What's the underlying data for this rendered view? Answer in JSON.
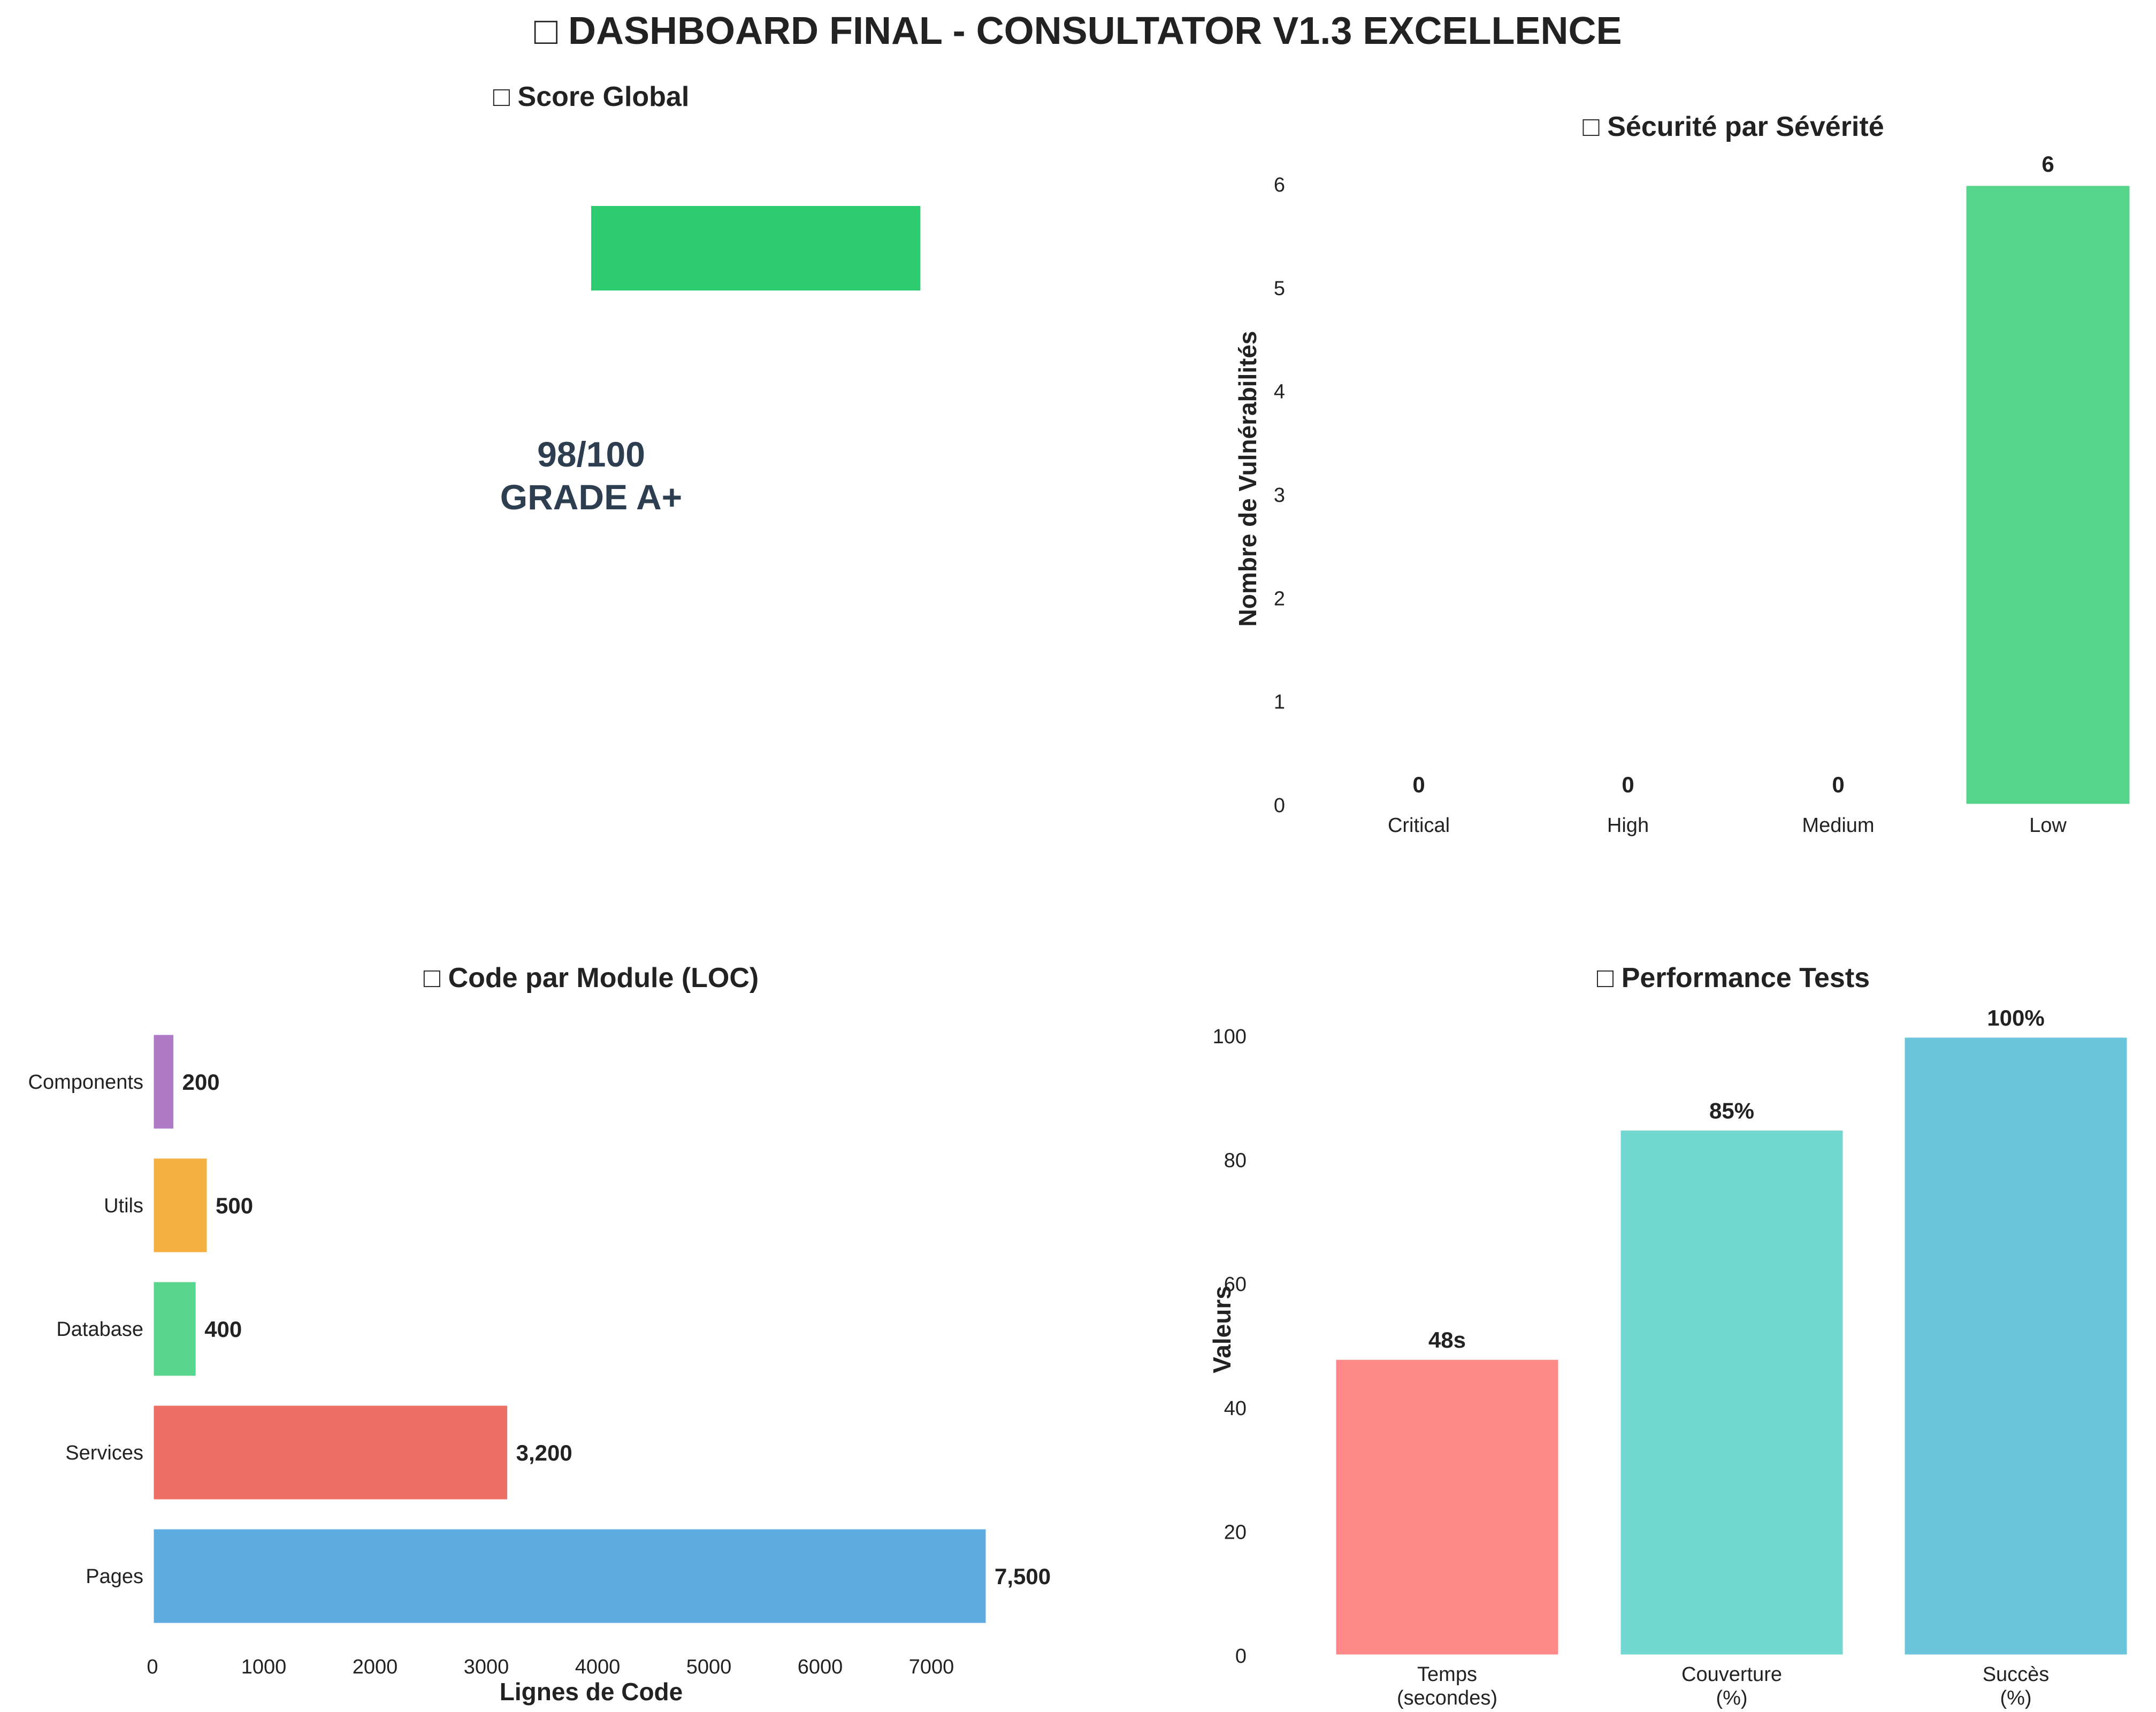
{
  "title": "□ DASHBOARD FINAL - CONSULTATOR V1.3 EXCELLENCE",
  "chart_data": [
    {
      "type": "bar",
      "title": "□ Score Global",
      "score_text": "98/100",
      "grade_text": "GRADE A+",
      "score": 98,
      "max": 100,
      "color": "#2ecc71"
    },
    {
      "type": "bar",
      "title": "□ Sécurité par Sévérité",
      "ylabel": "Nombre de Vulnérabilités",
      "categories": [
        "Critical",
        "High",
        "Medium",
        "Low"
      ],
      "values": [
        0,
        0,
        0,
        6
      ],
      "value_labels": [
        "0",
        "0",
        "0",
        "6"
      ],
      "ylim": [
        0,
        6
      ],
      "yticks": [
        "0",
        "1",
        "2",
        "3",
        "4",
        "5",
        "6"
      ],
      "colors": [
        "#e74c3c",
        "#e67e22",
        "#f1c40f",
        "#2ecc71"
      ]
    },
    {
      "type": "bar",
      "orientation": "horizontal",
      "title": "□ Code par Module (LOC)",
      "xlabel": "Lignes de Code",
      "categories": [
        "Components",
        "Utils",
        "Database",
        "Services",
        "Pages"
      ],
      "values": [
        200,
        500,
        400,
        3200,
        7500
      ],
      "value_labels": [
        "200",
        "500",
        "400",
        "3,200",
        "7,500"
      ],
      "xticks": [
        "0",
        "1000",
        "2000",
        "3000",
        "4000",
        "5000",
        "6000",
        "7000"
      ],
      "colors": [
        "#9b59b6",
        "#f39c12",
        "#2ecc71",
        "#e74c3c",
        "#3498db"
      ]
    },
    {
      "type": "bar",
      "title": "□ Performance Tests",
      "ylabel": "Valeurs",
      "categories": [
        [
          "Temps",
          "(secondes)"
        ],
        [
          "Couverture",
          "(%)"
        ],
        [
          "Succès",
          "(%)"
        ]
      ],
      "values": [
        48,
        85,
        100
      ],
      "value_labels": [
        "48s",
        "85%",
        "100%"
      ],
      "ylim": [
        0,
        100
      ],
      "yticks": [
        "0",
        "20",
        "40",
        "60",
        "80",
        "100"
      ],
      "colors": [
        "#ff6b6b",
        "#4ecdc4",
        "#45b7d1"
      ]
    }
  ]
}
